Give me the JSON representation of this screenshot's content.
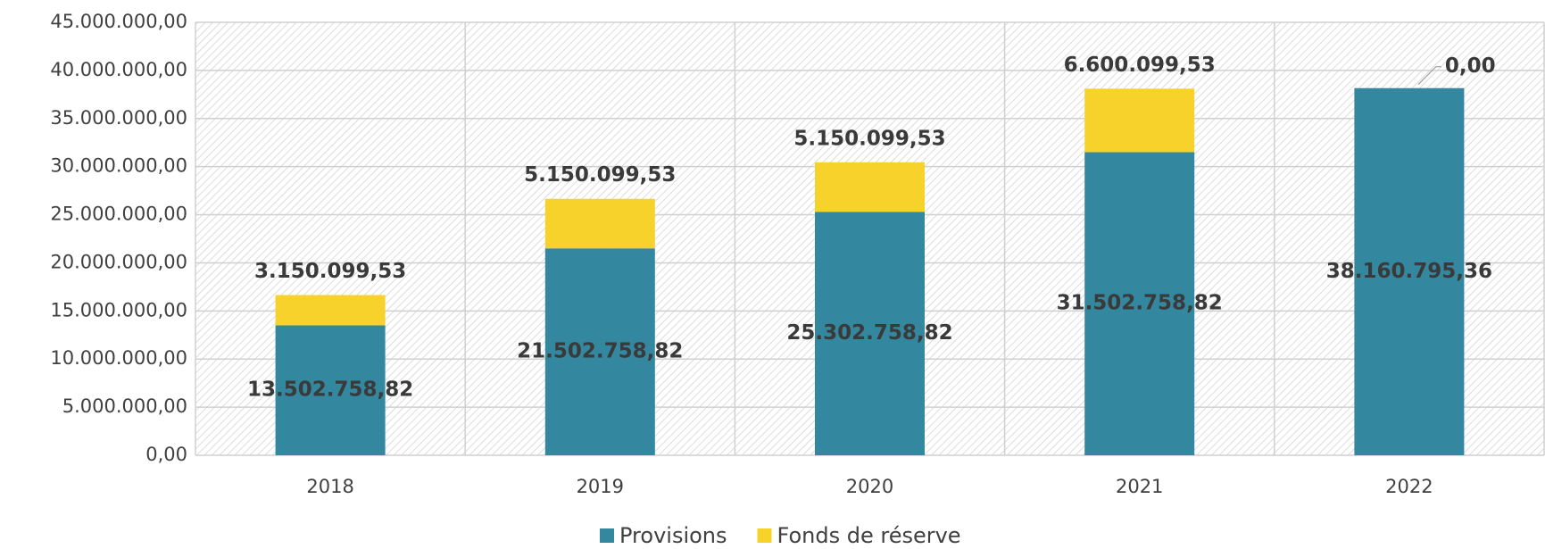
{
  "chart_data": {
    "type": "stacked_bar",
    "categories": [
      "2018",
      "2019",
      "2020",
      "2021",
      "2022"
    ],
    "series": [
      {
        "name": "Provisions",
        "color": "#33879e",
        "values": [
          13502758.82,
          21502758.82,
          25302758.82,
          31502758.82,
          38160795.36
        ],
        "value_labels": [
          "13.502.758,82",
          "21.502.758,82",
          "25.302.758,82",
          "31.502.758,82",
          "38.160.795,36"
        ]
      },
      {
        "name": "Fonds de réserve",
        "color": "#f7d22b",
        "values": [
          3150099.53,
          5150099.53,
          5150099.53,
          6600099.53,
          0
        ],
        "value_labels": [
          "3.150.099,53",
          "5.150.099,53",
          "5.150.099,53",
          "6.600.099,53",
          "0,00"
        ]
      }
    ],
    "ylim": [
      0,
      45000000
    ],
    "yticks": [
      {
        "value": 0,
        "label": "0,00"
      },
      {
        "value": 5000000,
        "label": "5.000.000,00"
      },
      {
        "value": 10000000,
        "label": "10.000.000,00"
      },
      {
        "value": 15000000,
        "label": "15.000.000,00"
      },
      {
        "value": 20000000,
        "label": "20.000.000,00"
      },
      {
        "value": 25000000,
        "label": "25.000.000,00"
      },
      {
        "value": 30000000,
        "label": "30.000.000,00"
      },
      {
        "value": 35000000,
        "label": "35.000.000,00"
      },
      {
        "value": 40000000,
        "label": "40.000.000,00"
      },
      {
        "value": 45000000,
        "label": "45.000.000,00"
      }
    ],
    "grid": true,
    "legend": "bottom"
  }
}
